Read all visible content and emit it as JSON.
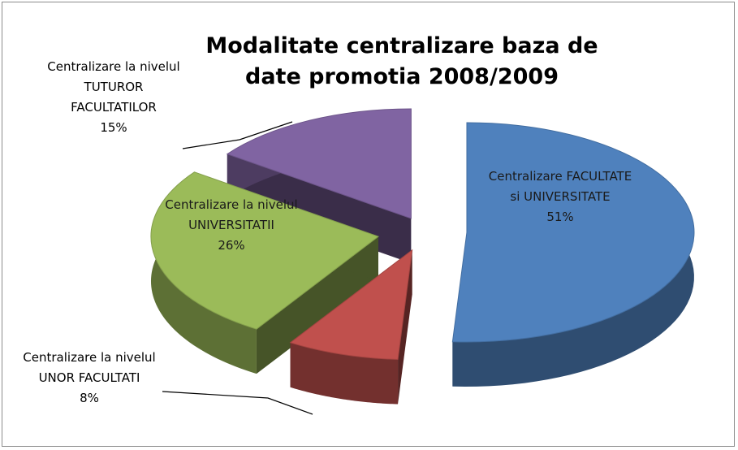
{
  "chart_data": {
    "type": "pie",
    "title": "Modalitate centralizare baza de date promotia 2008/2009",
    "categories": [
      "Centralizare FACULTATE si UNIVERSITATE",
      "Centralizare la nivelul UNOR FACULTATI",
      "Centralizare la nivelul UNIVERSITATII",
      "Centralizare la nivelul TUTUROR FACULTATILOR"
    ],
    "values": [
      51,
      8,
      26,
      15
    ],
    "value_labels": [
      "51%",
      "8%",
      "26%",
      "15%"
    ],
    "colors": [
      "#4f81bd",
      "#c0504d",
      "#9bbb59",
      "#8064a2"
    ]
  }
}
